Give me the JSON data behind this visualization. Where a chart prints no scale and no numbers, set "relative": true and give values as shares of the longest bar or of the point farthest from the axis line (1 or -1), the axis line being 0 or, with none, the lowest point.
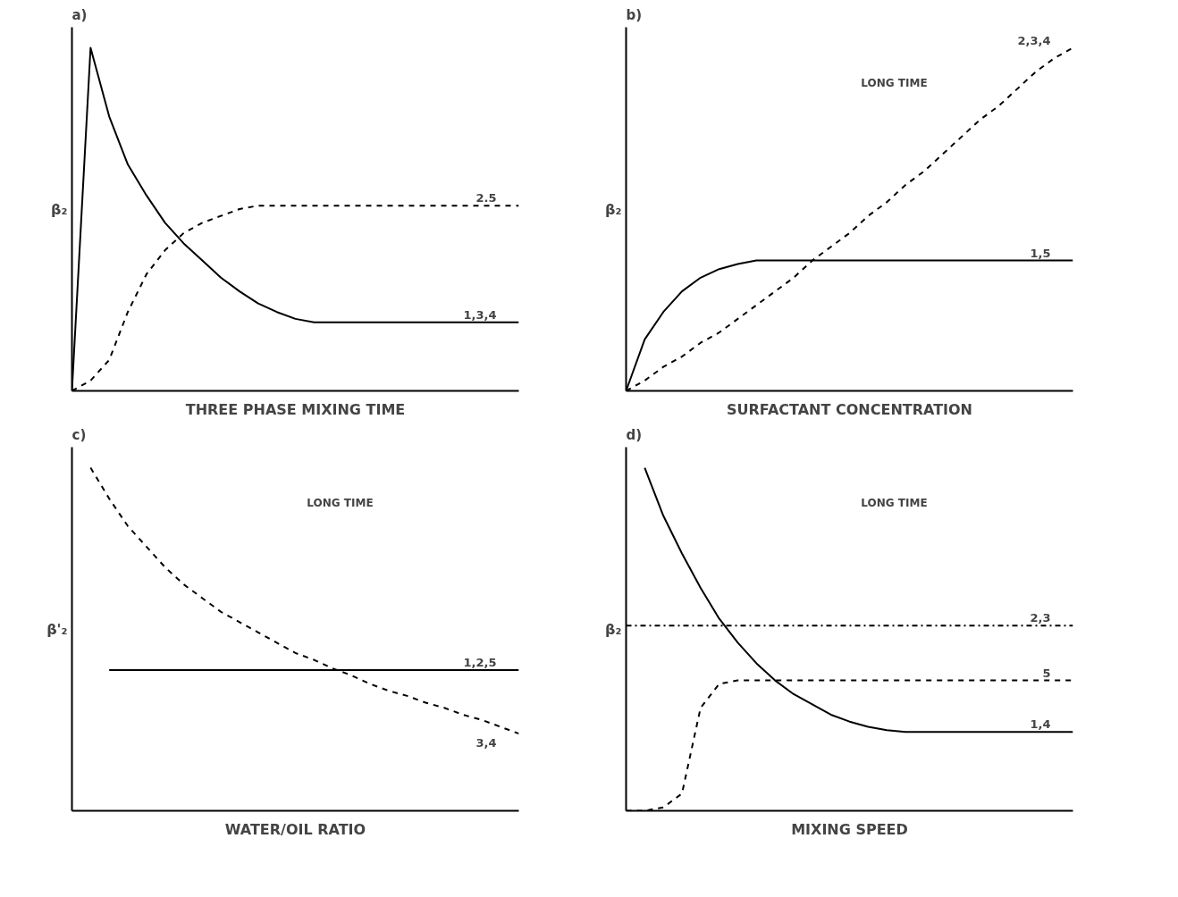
{
  "chart_data": [
    {
      "type": "line",
      "title": "a)",
      "xlabel": "THREE PHASE MIXING TIME",
      "ylabel": "β₂",
      "relative": true,
      "grid": false,
      "categories": [
        null,
        null,
        null,
        null,
        null,
        null,
        null,
        null,
        null,
        null,
        null,
        null,
        null,
        null,
        null,
        null,
        null,
        null,
        null,
        null,
        null,
        null,
        null,
        null,
        null
      ],
      "series": [
        {
          "name": "1,3,4",
          "color": "#000000",
          "line_style": "solid",
          "values": [
            0,
            1.0,
            0.8,
            0.66,
            0.57,
            0.49,
            0.43,
            0.38,
            0.33,
            0.29,
            0.255,
            0.23,
            0.21,
            0.2,
            0.2,
            0.2,
            0.2,
            0.2,
            0.2,
            0.2,
            0.2,
            0.2,
            0.2,
            0.2,
            0.2
          ]
        },
        {
          "name": "2.5",
          "color": "#000000",
          "line_style": "dashed",
          "values": [
            0,
            0.03,
            0.09,
            0.23,
            0.34,
            0.41,
            0.46,
            0.49,
            0.51,
            0.53,
            0.54,
            0.54,
            0.54,
            0.54,
            0.54,
            0.54,
            0.54,
            0.54,
            0.54,
            0.54,
            0.54,
            0.54,
            0.54,
            0.54,
            0.54
          ]
        }
      ]
    },
    {
      "type": "line",
      "title": "b)",
      "xlabel": "SURFACTANT CONCENTRATION",
      "ylabel": "β₂",
      "relative": true,
      "grid": false,
      "annotations": [
        "LONG TIME"
      ],
      "categories": [
        null,
        null,
        null,
        null,
        null,
        null,
        null,
        null,
        null,
        null,
        null,
        null,
        null,
        null,
        null,
        null,
        null,
        null,
        null,
        null,
        null,
        null,
        null,
        null,
        null
      ],
      "series": [
        {
          "name": "1,5",
          "color": "#000000",
          "line_style": "solid",
          "values": [
            0,
            0.15,
            0.23,
            0.29,
            0.33,
            0.355,
            0.37,
            0.38,
            0.38,
            0.38,
            0.38,
            0.38,
            0.38,
            0.38,
            0.38,
            0.38,
            0.38,
            0.38,
            0.38,
            0.38,
            0.38,
            0.38,
            0.38,
            0.38,
            0.38
          ]
        },
        {
          "name": "2,3,4",
          "color": "#000000",
          "line_style": "dashed",
          "values": [
            0,
            0.03,
            0.07,
            0.1,
            0.14,
            0.17,
            0.21,
            0.25,
            0.29,
            0.33,
            0.38,
            0.42,
            0.46,
            0.51,
            0.55,
            0.6,
            0.64,
            0.69,
            0.74,
            0.79,
            0.83,
            0.88,
            0.93,
            0.97,
            1.0
          ]
        }
      ]
    },
    {
      "type": "line",
      "title": "c)",
      "xlabel": "WATER/OIL RATIO",
      "ylabel": "β'₂",
      "relative": true,
      "grid": false,
      "annotations": [
        "LONG TIME"
      ],
      "categories": [
        null,
        null,
        null,
        null,
        null,
        null,
        null,
        null,
        null,
        null,
        null,
        null,
        null,
        null,
        null,
        null,
        null,
        null,
        null,
        null,
        null,
        null,
        null,
        null,
        null
      ],
      "series": [
        {
          "name": "1,2,5",
          "color": "#000000",
          "line_style": "solid",
          "values": [
            null,
            null,
            0.41,
            0.41,
            0.41,
            0.41,
            0.41,
            0.41,
            0.41,
            0.41,
            0.41,
            0.41,
            0.41,
            0.41,
            0.41,
            0.41,
            0.41,
            0.41,
            0.41,
            0.41,
            0.41,
            0.41,
            0.41,
            0.41,
            0.41
          ]
        },
        {
          "name": "3,4",
          "color": "#000000",
          "line_style": "dashed",
          "values": [
            null,
            1.0,
            0.91,
            0.83,
            0.77,
            0.71,
            0.66,
            0.62,
            0.58,
            0.55,
            0.52,
            0.49,
            0.46,
            0.44,
            0.415,
            0.395,
            0.37,
            0.35,
            0.335,
            0.315,
            0.3,
            0.28,
            0.265,
            0.245,
            0.225
          ]
        }
      ]
    },
    {
      "type": "line",
      "title": "d)",
      "xlabel": "MIXING SPEED",
      "ylabel": "β₂",
      "relative": true,
      "grid": false,
      "annotations": [
        "LONG TIME"
      ],
      "categories": [
        null,
        null,
        null,
        null,
        null,
        null,
        null,
        null,
        null,
        null,
        null,
        null,
        null,
        null,
        null,
        null,
        null,
        null,
        null,
        null,
        null,
        null,
        null,
        null,
        null
      ],
      "series": [
        {
          "name": "1,4",
          "color": "#000000",
          "line_style": "solid",
          "values": [
            null,
            1.0,
            0.86,
            0.75,
            0.65,
            0.56,
            0.49,
            0.43,
            0.38,
            0.34,
            0.31,
            0.28,
            0.26,
            0.245,
            0.235,
            0.23,
            0.23,
            0.23,
            0.23,
            0.23,
            0.23,
            0.23,
            0.23,
            0.23,
            0.23
          ]
        },
        {
          "name": "2,3",
          "color": "#000000",
          "line_style": "dashdot",
          "values": [
            0.54,
            0.54,
            0.54,
            0.54,
            0.54,
            0.54,
            0.54,
            0.54,
            0.54,
            0.54,
            0.54,
            0.54,
            0.54,
            0.54,
            0.54,
            0.54,
            0.54,
            0.54,
            0.54,
            0.54,
            0.54,
            0.54,
            0.54,
            0.54,
            0.54
          ]
        },
        {
          "name": "5",
          "color": "#000000",
          "line_style": "dashed",
          "values": [
            0,
            0,
            0.01,
            0.05,
            0.3,
            0.37,
            0.38,
            0.38,
            0.38,
            0.38,
            0.38,
            0.38,
            0.38,
            0.38,
            0.38,
            0.38,
            0.38,
            0.38,
            0.38,
            0.38,
            0.38,
            0.38,
            0.38,
            0.38,
            0.38
          ]
        }
      ]
    }
  ]
}
